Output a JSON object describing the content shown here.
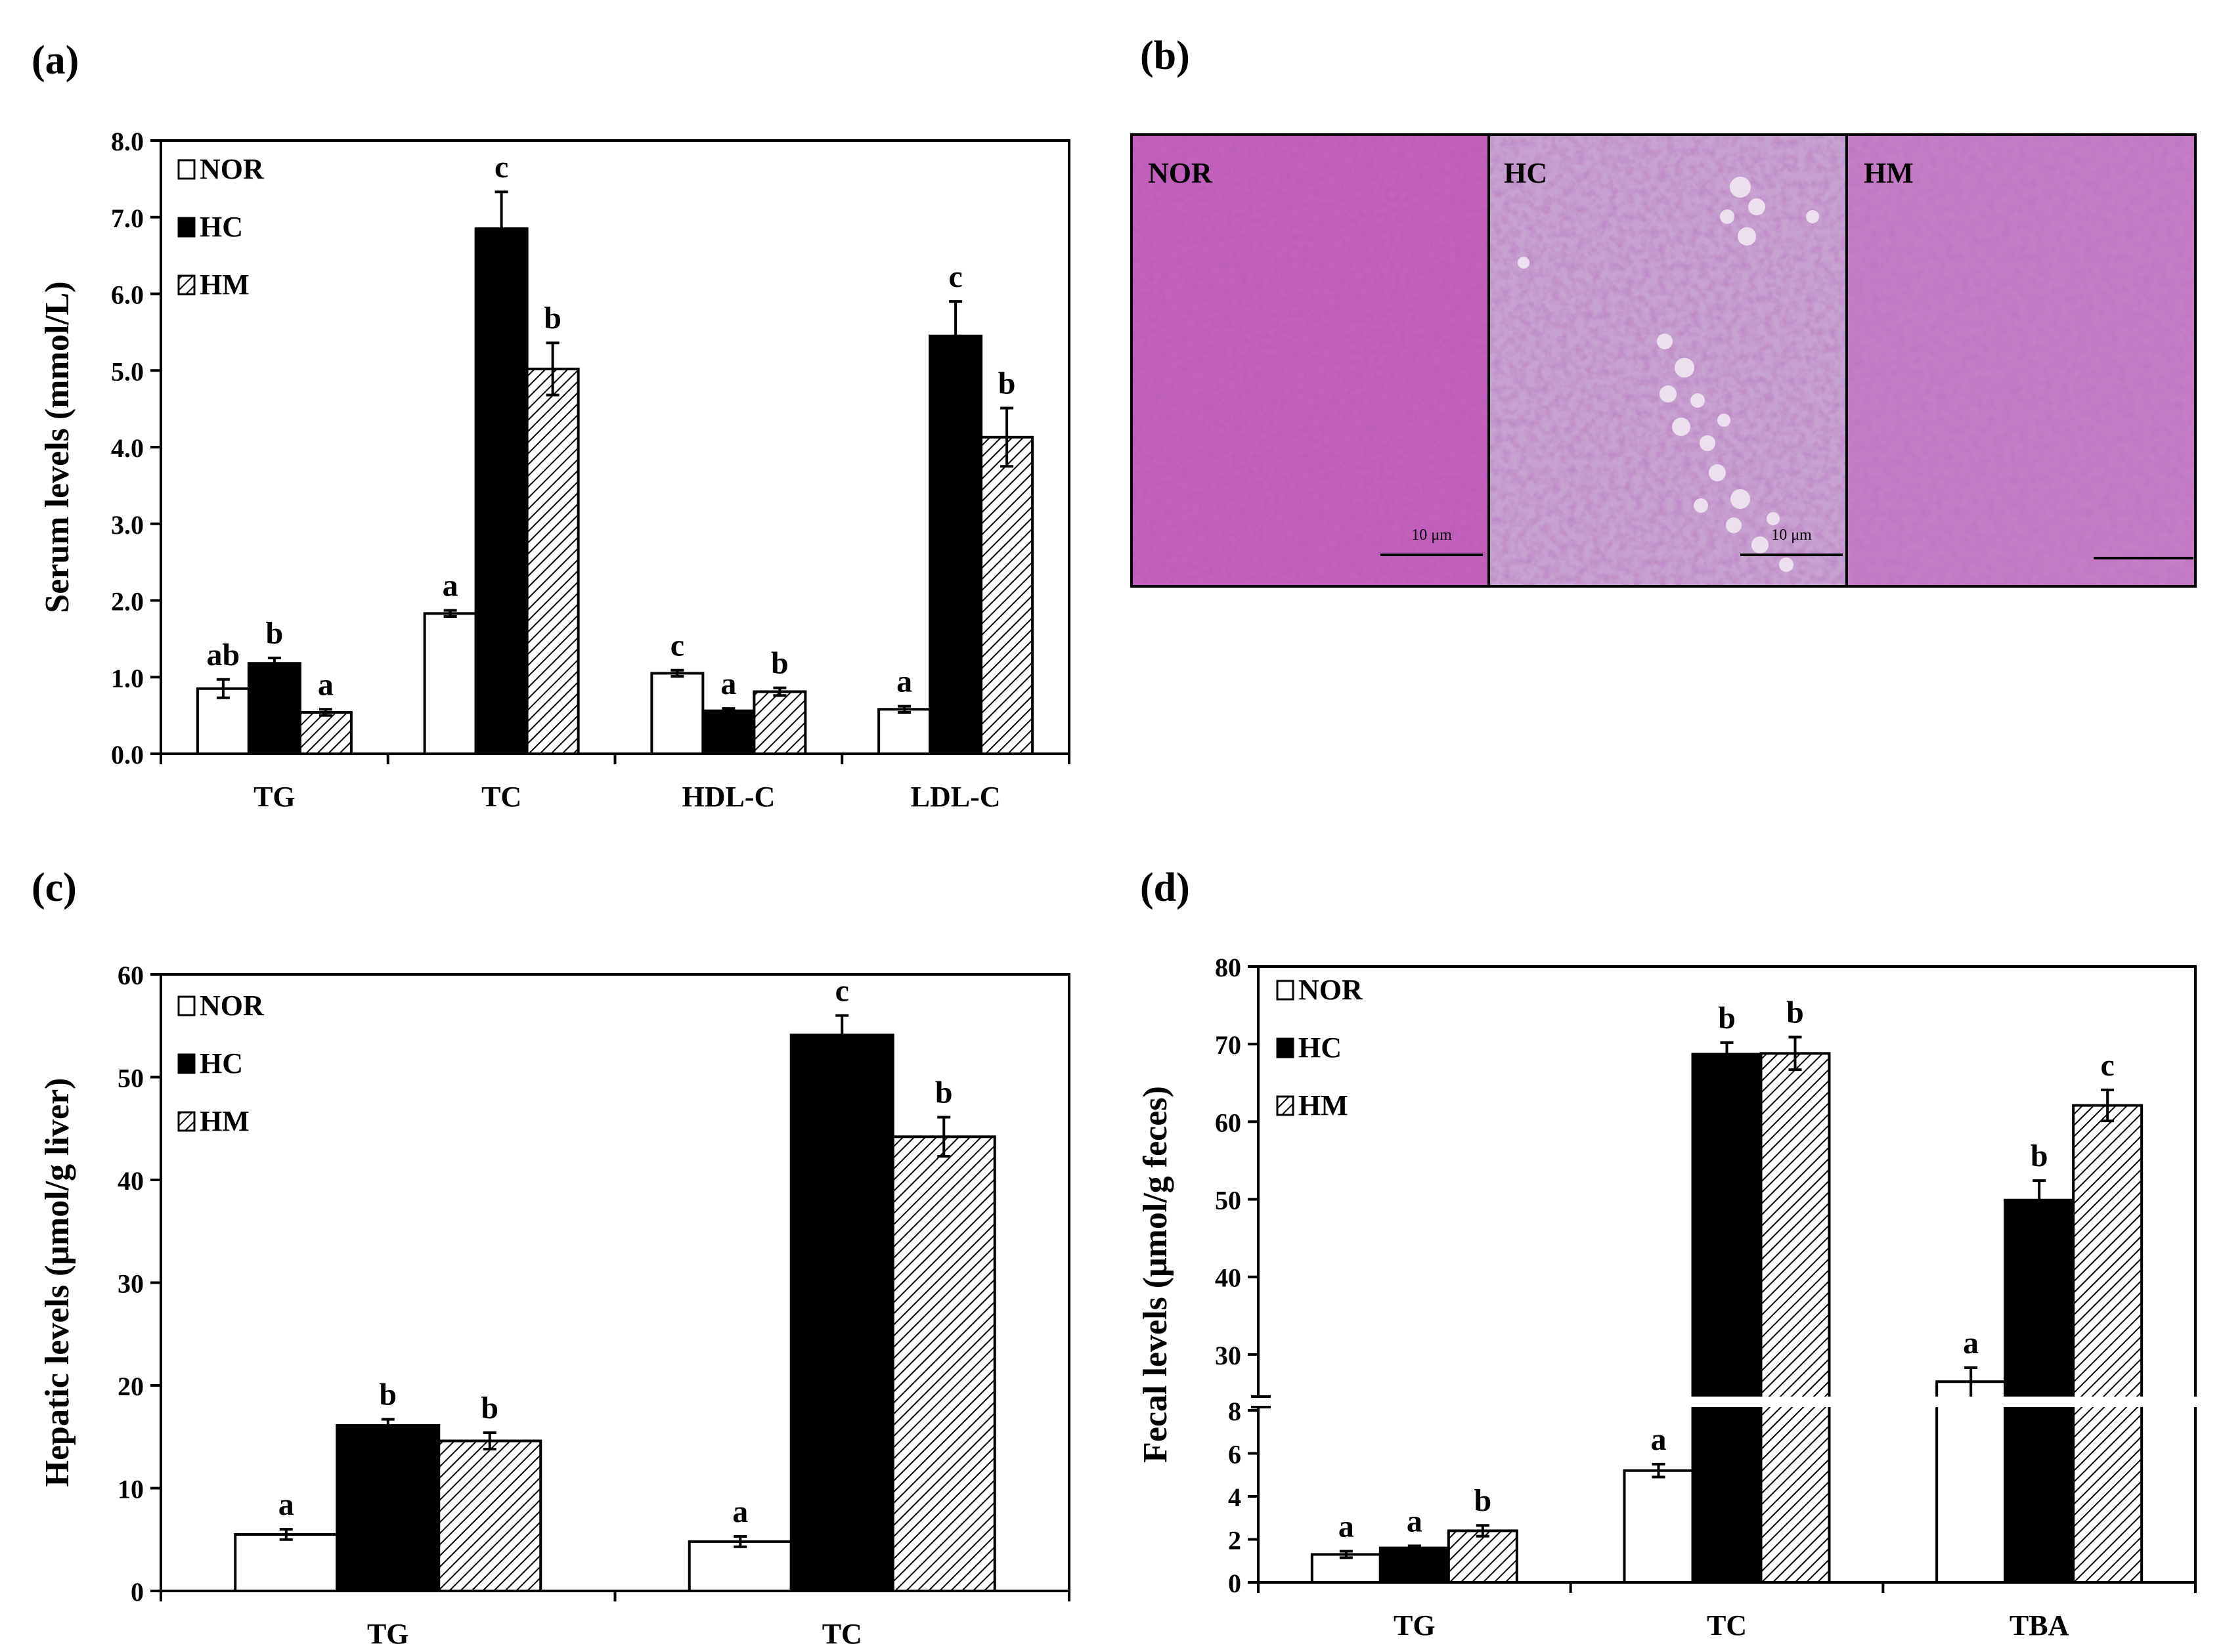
{
  "panel_labels": [
    "(a)",
    "(b)",
    "(c)",
    "(d)"
  ],
  "colors": {
    "NOR": "#ffffff",
    "HC": "#000000",
    "HM": "hatched",
    "tissue": "#c25fbe"
  },
  "histology": {
    "panels": [
      {
        "label": "NOR",
        "scale_text": "10 μm"
      },
      {
        "label": "HC",
        "scale_text": "10 μm"
      },
      {
        "label": "HM",
        "scale_text": ""
      }
    ]
  },
  "chart_data": [
    {
      "id": "a",
      "type": "bar",
      "ylabel": "Serum levels (mmol/L)",
      "categories": [
        "TG",
        "TC",
        "HDL-C",
        "LDL-C"
      ],
      "ylim": [
        0,
        8
      ],
      "ytick_labels": [
        "0.0",
        "1.0",
        "2.0",
        "3.0",
        "4.0",
        "5.0",
        "6.0",
        "7.0",
        "8.0"
      ],
      "legend": [
        "NOR",
        "HC",
        "HM"
      ],
      "legend_position": "top-left",
      "series": [
        {
          "name": "NOR",
          "values": [
            0.85,
            1.83,
            1.05,
            0.58
          ],
          "errors": [
            0.12,
            0.04,
            0.04,
            0.04
          ],
          "letters": [
            "ab",
            "a",
            "c",
            "a"
          ]
        },
        {
          "name": "HC",
          "values": [
            1.18,
            6.85,
            0.56,
            5.45
          ],
          "errors": [
            0.07,
            0.48,
            0.03,
            0.45
          ],
          "letters": [
            "b",
            "c",
            "a",
            "c"
          ]
        },
        {
          "name": "HM",
          "values": [
            0.54,
            5.02,
            0.81,
            4.13
          ],
          "errors": [
            0.04,
            0.34,
            0.05,
            0.38
          ],
          "letters": [
            "a",
            "b",
            "b",
            "b"
          ]
        }
      ]
    },
    {
      "id": "c",
      "type": "bar",
      "ylabel": "Hepatic levels (μmol/g liver)",
      "categories": [
        "TG",
        "TC"
      ],
      "ylim": [
        0,
        60
      ],
      "ytick_labels": [
        "0",
        "10",
        "20",
        "30",
        "40",
        "50",
        "60"
      ],
      "legend": [
        "NOR",
        "HC",
        "HM"
      ],
      "legend_position": "top-left",
      "series": [
        {
          "name": "NOR",
          "values": [
            5.5,
            4.8
          ],
          "errors": [
            0.5,
            0.5
          ],
          "letters": [
            "a",
            "a"
          ]
        },
        {
          "name": "HC",
          "values": [
            16.1,
            54.1
          ],
          "errors": [
            0.6,
            1.9
          ],
          "letters": [
            "b",
            "c"
          ]
        },
        {
          "name": "HM",
          "values": [
            14.6,
            44.2
          ],
          "errors": [
            0.8,
            1.9
          ],
          "letters": [
            "b",
            "b"
          ]
        }
      ]
    },
    {
      "id": "d",
      "type": "bar",
      "ylabel": "Fecal levels (μmol/g feces)",
      "categories": [
        "TG",
        "TC",
        "TBA"
      ],
      "axis_break": true,
      "ylim_lower": [
        0,
        8
      ],
      "ylim_upper": [
        25,
        80
      ],
      "ytick_labels_lower": [
        "0",
        "2",
        "4",
        "6",
        "8"
      ],
      "ytick_labels_upper": [
        "30",
        "40",
        "50",
        "60",
        "70",
        "80"
      ],
      "legend": [
        "NOR",
        "HC",
        "HM"
      ],
      "legend_position": "top-left",
      "series": [
        {
          "name": "NOR",
          "values": [
            1.3,
            5.2,
            26.5
          ],
          "errors": [
            0.15,
            0.3,
            1.8
          ],
          "letters": [
            "a",
            "a",
            "a"
          ]
        },
        {
          "name": "HC",
          "values": [
            1.6,
            68.7,
            49.9
          ],
          "errors": [
            0.1,
            1.5,
            2.5
          ],
          "letters": [
            "a",
            "b",
            "b"
          ]
        },
        {
          "name": "HM",
          "values": [
            2.4,
            68.8,
            62.1
          ],
          "errors": [
            0.25,
            2.1,
            2.0
          ],
          "letters": [
            "b",
            "b",
            "c"
          ]
        }
      ]
    }
  ]
}
